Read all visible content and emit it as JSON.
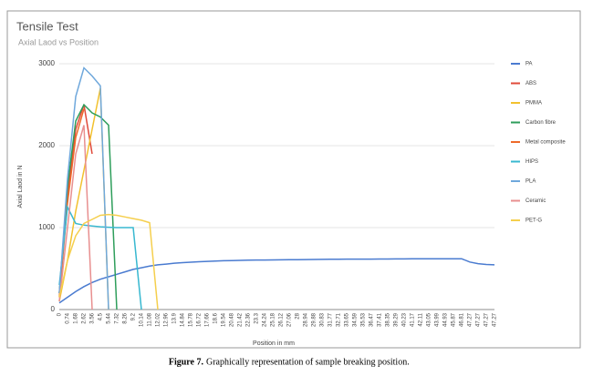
{
  "chart_data": {
    "type": "line",
    "title": "Tensile Test",
    "subtitle": "Axial Laod vs Position",
    "y_label": "Axial Laod in N",
    "x_label": "Position in mm",
    "categories": [
      "0",
      "0.74",
      "1.68",
      "2.62",
      "3.56",
      "4.5",
      "5.44",
      "7.32",
      "8.26",
      "9.2",
      "10.14",
      "11.08",
      "12.02",
      "12.96",
      "13.9",
      "14.84",
      "15.78",
      "16.72",
      "17.66",
      "18.6",
      "19.54",
      "20.48",
      "21.42",
      "22.36",
      "23.3",
      "24.24",
      "25.18",
      "26.12",
      "27.06",
      "28",
      "28.94",
      "29.88",
      "30.83",
      "31.77",
      "32.71",
      "33.65",
      "34.59",
      "35.53",
      "36.47",
      "37.41",
      "38.35",
      "39.29",
      "40.23",
      "41.17",
      "42.11",
      "43.05",
      "43.99",
      "44.93",
      "45.87",
      "46.81",
      "47.27",
      "47.27",
      "47.27",
      "47.27"
    ],
    "ylim": [
      0,
      3000
    ],
    "yticks": [
      0,
      1000,
      2000,
      3000
    ],
    "grid": true,
    "legend": "right",
    "series": [
      {
        "name": "PA",
        "color": "#4a7bd0",
        "values": [
          80,
          150,
          220,
          280,
          330,
          370,
          400,
          430,
          460,
          490,
          510,
          530,
          545,
          555,
          565,
          572,
          578,
          583,
          588,
          592,
          596,
          598,
          600,
          602,
          604,
          605,
          606,
          607,
          608,
          609,
          610,
          611,
          612,
          613,
          614,
          615,
          615,
          616,
          616,
          617,
          617,
          618,
          618,
          619,
          619,
          620,
          620,
          620,
          620,
          620,
          580,
          560,
          550,
          545
        ]
      },
      {
        "name": "ABS",
        "color": "#e04a3a",
        "values": [
          200,
          1400,
          2200,
          2500,
          1900,
          null,
          null,
          null,
          null,
          null,
          null,
          null,
          null,
          null,
          null,
          null,
          null,
          null,
          null,
          null,
          null,
          null,
          null,
          null,
          null,
          null,
          null,
          null,
          null,
          null,
          null,
          null,
          null,
          null,
          null,
          null,
          null,
          null,
          null,
          null,
          null,
          null,
          null,
          null,
          null,
          null,
          null,
          null,
          null,
          null,
          null,
          null,
          null,
          null
        ]
      },
      {
        "name": "PMMA",
        "color": "#f2c12e",
        "values": [
          100,
          600,
          1200,
          1700,
          2200,
          2700,
          0,
          null,
          null,
          null,
          null,
          null,
          null,
          null,
          null,
          null,
          null,
          null,
          null,
          null,
          null,
          null,
          null,
          null,
          null,
          null,
          null,
          null,
          null,
          null,
          null,
          null,
          null,
          null,
          null,
          null,
          null,
          null,
          null,
          null,
          null,
          null,
          null,
          null,
          null,
          null,
          null,
          null,
          null,
          null,
          null,
          null,
          null,
          null
        ]
      },
      {
        "name": "Carbon fibre",
        "color": "#2e9e5b",
        "values": [
          200,
          1500,
          2300,
          2500,
          2400,
          2350,
          2250,
          0,
          null,
          null,
          null,
          null,
          null,
          null,
          null,
          null,
          null,
          null,
          null,
          null,
          null,
          null,
          null,
          null,
          null,
          null,
          null,
          null,
          null,
          null,
          null,
          null,
          null,
          null,
          null,
          null,
          null,
          null,
          null,
          null,
          null,
          null,
          null,
          null,
          null,
          null,
          null,
          null,
          null,
          null,
          null,
          null,
          null,
          null
        ]
      },
      {
        "name": "Metal composite",
        "color": "#ee6a2a",
        "values": [
          150,
          1300,
          2100,
          2450,
          null,
          null,
          null,
          null,
          null,
          null,
          null,
          null,
          null,
          null,
          null,
          null,
          null,
          null,
          null,
          null,
          null,
          null,
          null,
          null,
          null,
          null,
          null,
          null,
          null,
          null,
          null,
          null,
          null,
          null,
          null,
          null,
          null,
          null,
          null,
          null,
          null,
          null,
          null,
          null,
          null,
          null,
          null,
          null,
          null,
          null,
          null,
          null,
          null,
          null
        ]
      },
      {
        "name": "HIPS",
        "color": "#38b8d0",
        "values": [
          300,
          1250,
          1050,
          1030,
          1020,
          1010,
          1005,
          1000,
          1000,
          1000,
          0,
          null,
          null,
          null,
          null,
          null,
          null,
          null,
          null,
          null,
          null,
          null,
          null,
          null,
          null,
          null,
          null,
          null,
          null,
          null,
          null,
          null,
          null,
          null,
          null,
          null,
          null,
          null,
          null,
          null,
          null,
          null,
          null,
          null,
          null,
          null,
          null,
          null,
          null,
          null,
          null,
          null,
          null,
          null
        ]
      },
      {
        "name": "PLA",
        "color": "#6fa8dc",
        "values": [
          200,
          1600,
          2600,
          2950,
          2850,
          2730,
          0,
          null,
          null,
          null,
          null,
          null,
          null,
          null,
          null,
          null,
          null,
          null,
          null,
          null,
          null,
          null,
          null,
          null,
          null,
          null,
          null,
          null,
          null,
          null,
          null,
          null,
          null,
          null,
          null,
          null,
          null,
          null,
          null,
          null,
          null,
          null,
          null,
          null,
          null,
          null,
          null,
          null,
          null,
          null,
          null,
          null,
          null,
          null
        ]
      },
      {
        "name": "Ceramic",
        "color": "#e88f8f",
        "values": [
          100,
          1000,
          1900,
          2250,
          0,
          null,
          null,
          null,
          null,
          null,
          null,
          null,
          null,
          null,
          null,
          null,
          null,
          null,
          null,
          null,
          null,
          null,
          null,
          null,
          null,
          null,
          null,
          null,
          null,
          null,
          null,
          null,
          null,
          null,
          null,
          null,
          null,
          null,
          null,
          null,
          null,
          null,
          null,
          null,
          null,
          null,
          null,
          null,
          null,
          null,
          null,
          null,
          null,
          null
        ]
      },
      {
        "name": "PET-G",
        "color": "#f5cf4d",
        "values": [
          150,
          600,
          900,
          1050,
          1100,
          1150,
          1160,
          1150,
          1130,
          1110,
          1090,
          1060,
          0,
          null,
          null,
          null,
          null,
          null,
          null,
          null,
          null,
          null,
          null,
          null,
          null,
          null,
          null,
          null,
          null,
          null,
          null,
          null,
          null,
          null,
          null,
          null,
          null,
          null,
          null,
          null,
          null,
          null,
          null,
          null,
          null,
          null,
          null,
          null,
          null,
          null,
          null,
          null,
          null,
          null
        ]
      }
    ]
  },
  "caption": {
    "label": "Figure 7.",
    "text": "Graphically representation of sample breaking position."
  }
}
